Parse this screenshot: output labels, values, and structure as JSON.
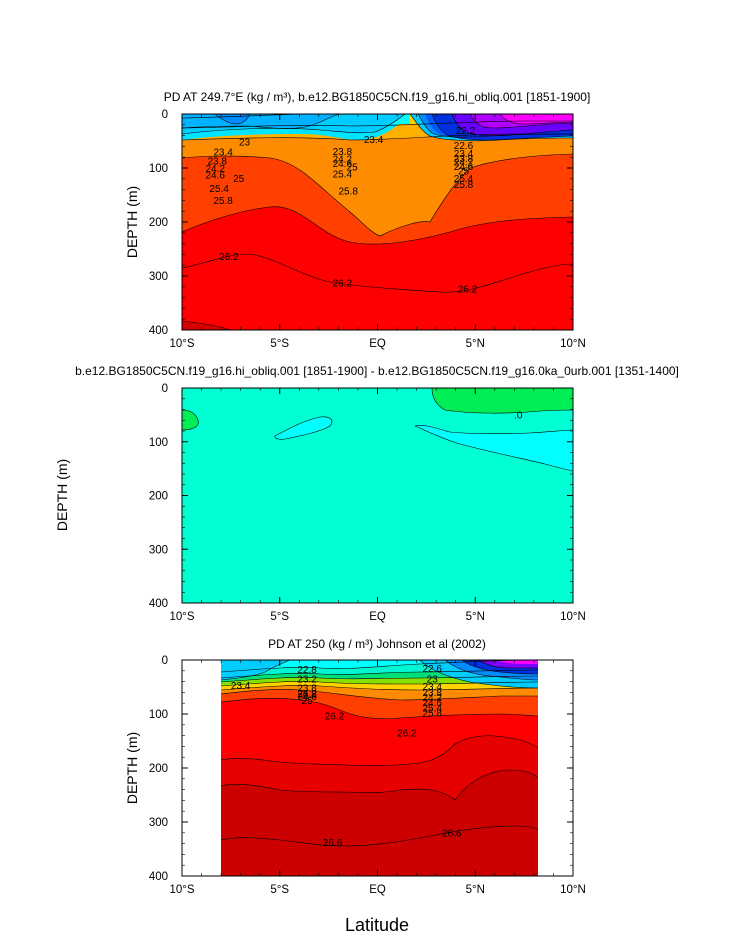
{
  "x_axis_label": "Latitude",
  "chart_data": [
    {
      "type": "heatmap",
      "title": "PD AT 249.7°E (kg / m³), b.e12.BG1850C5CN.f19_g16.hi_obliq.001 [1851-1900]",
      "xlabel": "",
      "ylabel": "DEPTH (m)",
      "x_ticks": [
        "10°S",
        "5°S",
        "EQ",
        "5°N",
        "10°N"
      ],
      "y_ticks": [
        "0",
        "100",
        "200",
        "300",
        "400"
      ],
      "xlim": [
        -10,
        10
      ],
      "ylim": [
        400,
        0
      ],
      "contour_labels": [
        {
          "text": "23",
          "lat": -6.8,
          "depth": 52
        },
        {
          "text": "23.4",
          "lat": -7.9,
          "depth": 70
        },
        {
          "text": "23.8",
          "lat": -8.2,
          "depth": 87
        },
        {
          "text": "24.2",
          "lat": -8.3,
          "depth": 101
        },
        {
          "text": "24.6",
          "lat": -8.3,
          "depth": 113
        },
        {
          "text": "25",
          "lat": -7.1,
          "depth": 119
        },
        {
          "text": "25.4",
          "lat": -8.1,
          "depth": 138
        },
        {
          "text": "25.8",
          "lat": -7.9,
          "depth": 160
        },
        {
          "text": "26.2",
          "lat": -7.6,
          "depth": 264
        },
        {
          "text": "23.4",
          "lat": -0.2,
          "depth": 47
        },
        {
          "text": "23.8",
          "lat": -1.8,
          "depth": 69
        },
        {
          "text": "24.2",
          "lat": -1.8,
          "depth": 83
        },
        {
          "text": "24.6",
          "lat": -1.8,
          "depth": 92
        },
        {
          "text": "25",
          "lat": -1.3,
          "depth": 98
        },
        {
          "text": "25.4",
          "lat": -1.8,
          "depth": 111
        },
        {
          "text": "25.8",
          "lat": -1.5,
          "depth": 143
        },
        {
          "text": "26.2",
          "lat": -1.8,
          "depth": 313
        },
        {
          "text": "22.2",
          "lat": 4.5,
          "depth": 31
        },
        {
          "text": "22.6",
          "lat": 4.4,
          "depth": 58
        },
        {
          "text": "23.4",
          "lat": 4.4,
          "depth": 73
        },
        {
          "text": "23.8",
          "lat": 4.4,
          "depth": 82
        },
        {
          "text": "24.2",
          "lat": 4.4,
          "depth": 89
        },
        {
          "text": "24.6",
          "lat": 4.4,
          "depth": 97
        },
        {
          "text": "25",
          "lat": 4.4,
          "depth": 106
        },
        {
          "text": "25.4",
          "lat": 4.4,
          "depth": 119
        },
        {
          "text": "25.8",
          "lat": 4.4,
          "depth": 131
        },
        {
          "text": "26.2",
          "lat": 4.6,
          "depth": 324
        }
      ]
    },
    {
      "type": "heatmap",
      "title": "b.e12.BG1850C5CN.f19_g16.hi_obliq.001 [1851-1900] - b.e12.BG1850C5CN.f19_g16.0ka_0urb.001 [1351-1400]",
      "xlabel": "",
      "ylabel": "DEPTH (m)",
      "x_ticks": [
        "10°S",
        "5°S",
        "EQ",
        "5°N",
        "10°N"
      ],
      "y_ticks": [
        "0",
        "100",
        "200",
        "300",
        "400"
      ],
      "xlim": [
        -10,
        10
      ],
      "ylim": [
        400,
        0
      ],
      "contour_labels": [
        {
          "text": ".0",
          "lat": 7.2,
          "depth": 50
        }
      ]
    },
    {
      "type": "heatmap",
      "title": "PD AT 250 (kg / m³) Johnson et al (2002)",
      "xlabel": "",
      "ylabel": "DEPTH (m)",
      "x_ticks": [
        "10°S",
        "5°S",
        "EQ",
        "5°N",
        "10°N"
      ],
      "y_ticks": [
        "0",
        "100",
        "200",
        "300",
        "400"
      ],
      "xlim": [
        -10,
        10
      ],
      "ylim": [
        400,
        0
      ],
      "data_range_lat": [
        -8,
        8.2
      ],
      "contour_labels": [
        {
          "text": "23.4",
          "lat": -7.0,
          "depth": 47
        },
        {
          "text": "22.8",
          "lat": -3.6,
          "depth": 18
        },
        {
          "text": "23.2",
          "lat": -3.6,
          "depth": 35
        },
        {
          "text": "23.8",
          "lat": -3.6,
          "depth": 52
        },
        {
          "text": "24.2",
          "lat": -3.6,
          "depth": 62
        },
        {
          "text": "24.6",
          "lat": -3.6,
          "depth": 68
        },
        {
          "text": "25",
          "lat": -3.6,
          "depth": 75
        },
        {
          "text": "25.8",
          "lat": -3.6,
          "depth": 63
        },
        {
          "text": "26.2",
          "lat": -2.2,
          "depth": 104
        },
        {
          "text": "22.6",
          "lat": 2.8,
          "depth": 16
        },
        {
          "text": "23",
          "lat": 2.8,
          "depth": 35
        },
        {
          "text": "23.4",
          "lat": 2.8,
          "depth": 49
        },
        {
          "text": "23.8",
          "lat": 2.8,
          "depth": 60
        },
        {
          "text": "24.2",
          "lat": 2.8,
          "depth": 69
        },
        {
          "text": "24.6",
          "lat": 2.8,
          "depth": 79
        },
        {
          "text": "25.4",
          "lat": 2.8,
          "depth": 89
        },
        {
          "text": "25.8",
          "lat": 2.8,
          "depth": 98
        },
        {
          "text": "26.2",
          "lat": 1.5,
          "depth": 135
        },
        {
          "text": "26.6",
          "lat": -2.3,
          "depth": 338
        },
        {
          "text": "26.6",
          "lat": 3.8,
          "depth": 320
        }
      ]
    }
  ]
}
